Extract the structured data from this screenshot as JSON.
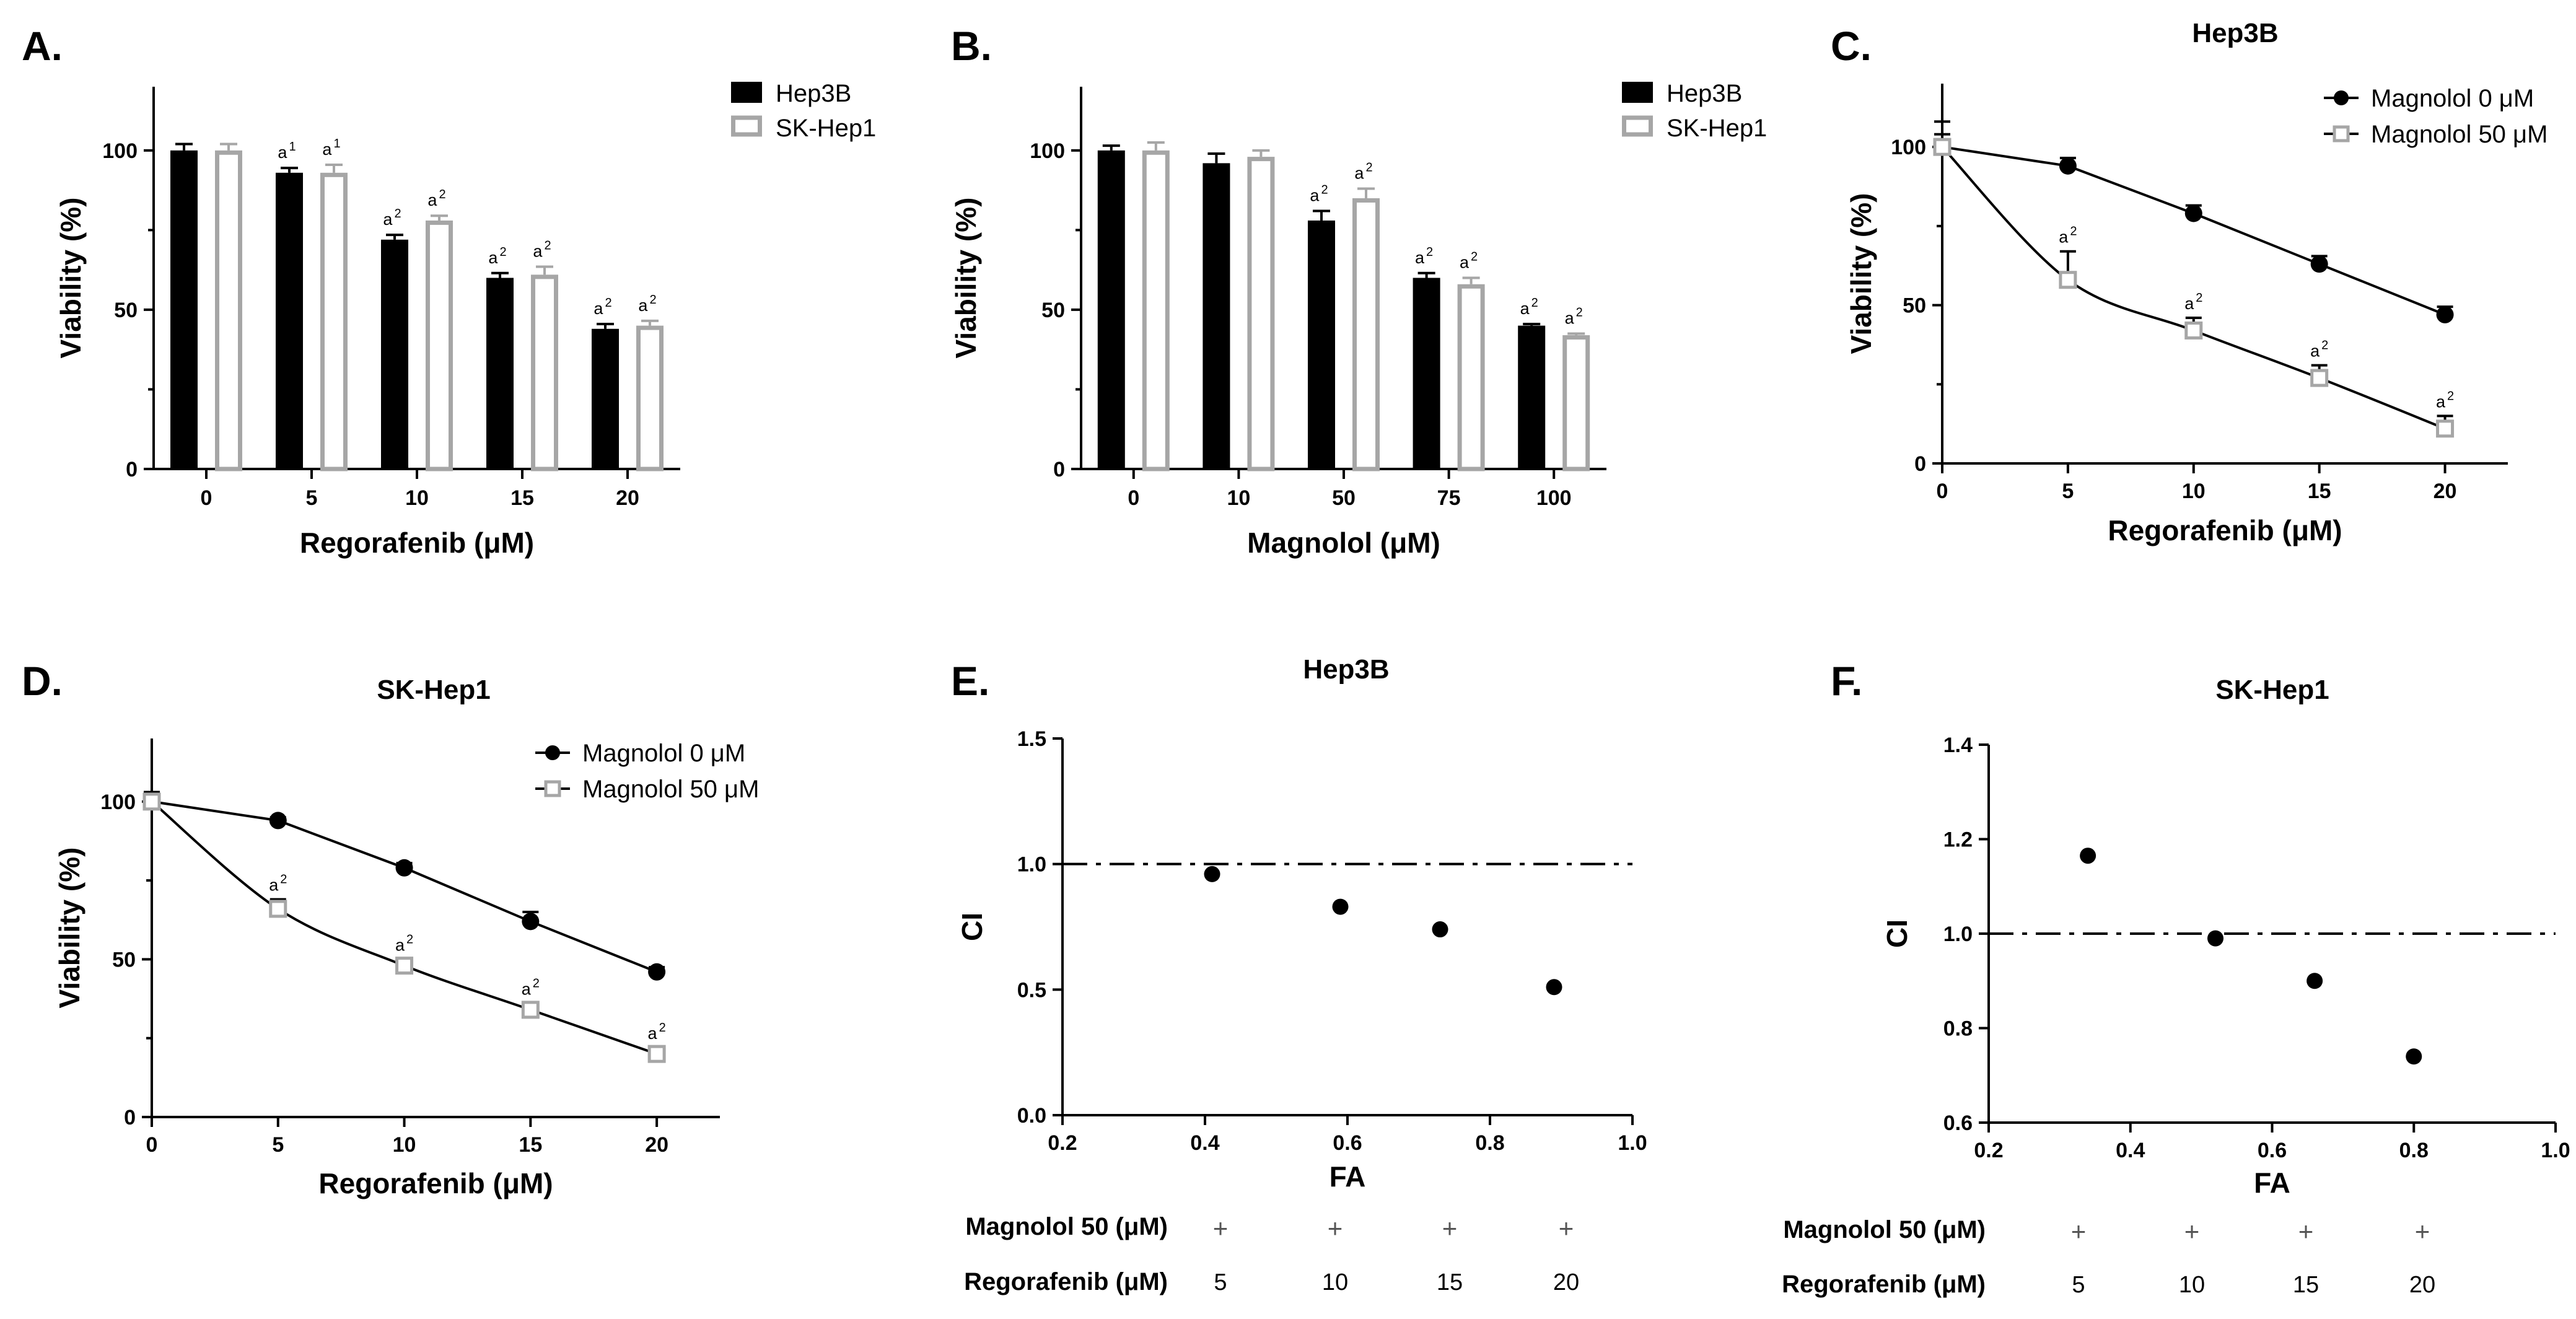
{
  "colors": {
    "black": "#000000",
    "gray": "#a6a6a6",
    "white": "#ffffff"
  },
  "chart_data": [
    {
      "panel": "A.",
      "type": "bar",
      "title": "",
      "xlabel": "Regorafenib (μM)",
      "ylabel": "Viability (%)",
      "categories": [
        "0",
        "5",
        "10",
        "15",
        "20"
      ],
      "yticks": [
        "0",
        "50",
        "100"
      ],
      "ylim": [
        0,
        120
      ],
      "series": [
        {
          "name": "Hep3B",
          "values": [
            100,
            93,
            72,
            60,
            44
          ],
          "errors": [
            2,
            1.5,
            1.5,
            1.5,
            1.5
          ],
          "annotations": [
            "",
            "a",
            "a",
            "a",
            "a"
          ],
          "superscripts": [
            "",
            "1",
            "2",
            "2",
            "2"
          ]
        },
        {
          "name": "SK-Hep1",
          "values": [
            100,
            93,
            78,
            61,
            45
          ],
          "errors": [
            2,
            2.5,
            1.5,
            2.5,
            1.5
          ],
          "annotations": [
            "",
            "a",
            "a",
            "a",
            "a"
          ],
          "superscripts": [
            "",
            "1",
            "2",
            "2",
            "2"
          ]
        }
      ],
      "legend": "top-right"
    },
    {
      "panel": "B.",
      "type": "bar",
      "title": "",
      "xlabel": "Magnolol (μM)",
      "ylabel": "Viability (%)",
      "categories": [
        "0",
        "10",
        "50",
        "75",
        "100"
      ],
      "yticks": [
        "0",
        "50",
        "100"
      ],
      "ylim": [
        0,
        120
      ],
      "series": [
        {
          "name": "Hep3B",
          "values": [
            100,
            96,
            78,
            60,
            45
          ],
          "errors": [
            1.5,
            3,
            3,
            1.5,
            0.5
          ],
          "annotations": [
            "",
            "",
            "a",
            "a",
            "a"
          ],
          "superscripts": [
            "",
            "",
            "2",
            "2",
            "2"
          ]
        },
        {
          "name": "SK-Hep1",
          "values": [
            100,
            98,
            85,
            58,
            42
          ],
          "errors": [
            2.5,
            2,
            3,
            2,
            0.5
          ],
          "annotations": [
            "",
            "",
            "a",
            "a",
            "a"
          ],
          "superscripts": [
            "",
            "",
            "2",
            "2",
            "2"
          ]
        }
      ],
      "legend": "top-right"
    },
    {
      "panel": "C.",
      "type": "line",
      "title": "Hep3B",
      "xlabel": "Regorafenib (μM)",
      "ylabel": "Viability  (%)",
      "x": [
        0,
        5,
        10,
        15,
        20
      ],
      "xticks": [
        "0",
        "5",
        "10",
        "15",
        "20"
      ],
      "yticks": [
        "0",
        "50",
        "100"
      ],
      "xlim": [
        0,
        22.5
      ],
      "ylim": [
        0,
        120
      ],
      "series": [
        {
          "name": "Magnolol 0 μM",
          "marker": "filled-circle",
          "values": [
            100,
            94,
            79,
            63,
            47
          ],
          "errors": [
            4,
            2.5,
            2.5,
            2.5,
            2.5
          ],
          "annotations": [
            "",
            "",
            "",
            "",
            ""
          ],
          "superscripts": [
            "",
            "",
            "",
            "",
            ""
          ]
        },
        {
          "name": "Magnolol 50 μM",
          "marker": "open-square",
          "values": [
            100,
            58,
            42,
            27,
            11
          ],
          "errors": [
            8,
            9,
            4,
            4,
            4
          ],
          "annotations": [
            "",
            "a",
            "a",
            "a",
            "a"
          ],
          "superscripts": [
            "",
            "2",
            "2",
            "2",
            "2"
          ]
        }
      ],
      "legend": "top-right"
    },
    {
      "panel": "D.",
      "type": "line",
      "title": "SK-Hep1",
      "xlabel": "Regorafenib (μM)",
      "ylabel": "Viability  (%)",
      "x": [
        0,
        5,
        10,
        15,
        20
      ],
      "xticks": [
        "0",
        "5",
        "10",
        "15",
        "20"
      ],
      "yticks": [
        "0",
        "50",
        "100"
      ],
      "xlim": [
        0,
        22.5
      ],
      "ylim": [
        0,
        120
      ],
      "series": [
        {
          "name": "Magnolol 0 μM",
          "marker": "filled-circle",
          "values": [
            100,
            94,
            79,
            62,
            46
          ],
          "errors": [
            3,
            1,
            1.5,
            3,
            1.5
          ],
          "annotations": [
            "",
            "",
            "",
            "",
            ""
          ],
          "superscripts": [
            "",
            "",
            "",
            "",
            ""
          ]
        },
        {
          "name": "Magnolol 50 μM",
          "marker": "open-square",
          "values": [
            100,
            66,
            48,
            34,
            20
          ],
          "errors": [
            3,
            3,
            2,
            2,
            2
          ],
          "annotations": [
            "",
            "a",
            "a",
            "a",
            "a"
          ],
          "superscripts": [
            "",
            "2",
            "2",
            "2",
            "2"
          ]
        }
      ],
      "legend": "top-right"
    },
    {
      "panel": "E.",
      "type": "scatter",
      "title": "Hep3B",
      "xlabel": "FA",
      "ylabel": "CI",
      "x": [
        0.41,
        0.59,
        0.73,
        0.89
      ],
      "y": [
        0.96,
        0.83,
        0.74,
        0.51
      ],
      "xticks": [
        "0.2",
        "0.4",
        "0.6",
        "0.8",
        "1.0"
      ],
      "yticks": [
        "0.0",
        "0.5",
        "1.0",
        "1.5"
      ],
      "xlim": [
        0.2,
        1.0
      ],
      "ylim": [
        0.0,
        1.5
      ],
      "reference_line_y": 1.0,
      "table": {
        "rows": [
          {
            "label": "Magnolol  50 (μM)",
            "values": [
              "+",
              "+",
              "+",
              "+"
            ]
          },
          {
            "label": "Regorafenib (μM)",
            "values": [
              "5",
              "10",
              "15",
              "20"
            ]
          }
        ]
      }
    },
    {
      "panel": "F.",
      "type": "scatter",
      "title": "SK-Hep1",
      "xlabel": "FA",
      "ylabel": "CI",
      "x": [
        0.34,
        0.52,
        0.66,
        0.8
      ],
      "y": [
        1.165,
        0.99,
        0.9,
        0.74
      ],
      "xticks": [
        "0.2",
        "0.4",
        "0.6",
        "0.8",
        "1.0"
      ],
      "yticks": [
        "0.6",
        "0.8",
        "1.0",
        "1.2",
        "1.4"
      ],
      "xlim": [
        0.2,
        1.0
      ],
      "ylim": [
        0.6,
        1.4
      ],
      "reference_line_y": 1.0,
      "table": {
        "rows": [
          {
            "label": "Magnolol  50 (μM)",
            "values": [
              "+",
              "+",
              "+",
              "+"
            ]
          },
          {
            "label": "Regorafenib (μM)",
            "values": [
              "5",
              "10",
              "15",
              "20"
            ]
          }
        ]
      }
    }
  ]
}
